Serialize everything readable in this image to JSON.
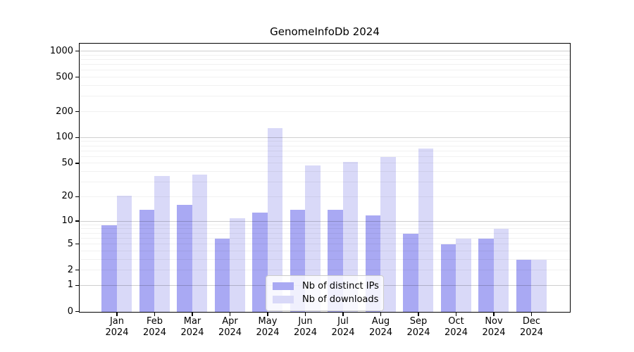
{
  "chart_data": {
    "type": "bar",
    "title": "GenomeInfoDb 2024",
    "categories": [
      "Jan 2024",
      "Feb 2024",
      "Mar 2024",
      "Apr 2024",
      "May 2024",
      "Jun 2024",
      "Jul 2024",
      "Aug 2024",
      "Sep 2024",
      "Oct 2024",
      "Nov 2024",
      "Dec 2024"
    ],
    "x_tick_month": [
      "Jan",
      "Feb",
      "Mar",
      "Apr",
      "May",
      "Jun",
      "Jul",
      "Aug",
      "Sep",
      "Oct",
      "Nov",
      "Dec"
    ],
    "x_tick_year": "2024",
    "series": [
      {
        "name": "Nb of distinct IPs",
        "color": "#a9a9f3",
        "values": [
          9,
          14,
          16,
          6,
          13,
          14,
          14,
          12,
          7,
          5,
          6,
          3
        ]
      },
      {
        "name": "Nb of downloads",
        "color": "#d9d9f8",
        "values": [
          21,
          36,
          37,
          11,
          130,
          48,
          52,
          60,
          75,
          6,
          8,
          3
        ]
      }
    ],
    "yscale": "log1p",
    "ylim": [
      0,
      1240
    ],
    "yticks": [
      0,
      1,
      2,
      5,
      10,
      20,
      50,
      100,
      200,
      500,
      1000
    ],
    "ytick_labels": [
      "0",
      "1",
      "2",
      "5",
      "10",
      "20",
      "50",
      "100",
      "200",
      "500",
      "1000"
    ],
    "major_gridlines": [
      1,
      10,
      100,
      1000
    ],
    "minor_gridlines": [
      2,
      3,
      4,
      5,
      6,
      7,
      8,
      9,
      20,
      30,
      40,
      50,
      60,
      70,
      80,
      90,
      200,
      300,
      400,
      500,
      600,
      700,
      800,
      900
    ],
    "grid": true,
    "legend_position": "lower center",
    "axis_color": "#000000",
    "background_color": "#ffffff"
  }
}
